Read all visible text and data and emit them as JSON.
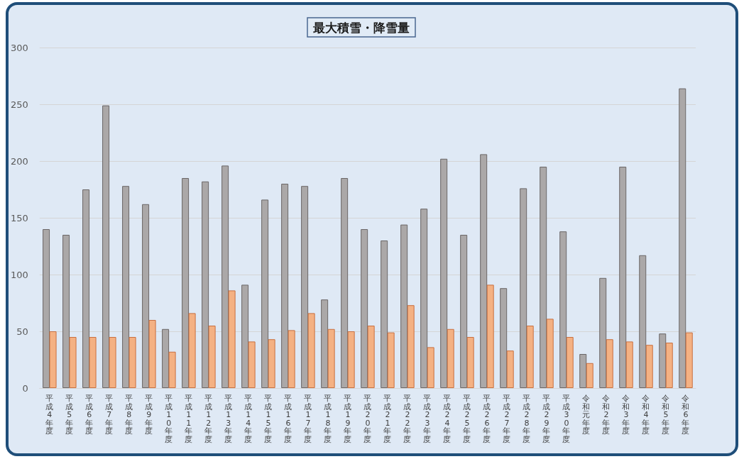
{
  "chart_data": {
    "type": "bar",
    "title": "最大積雪・降雪量",
    "categories": [
      "平成4年度",
      "平成5年度",
      "平成6年度",
      "平成7年度",
      "平成8年度",
      "平成9年度",
      "平成10年度",
      "平成11年度",
      "平成12年度",
      "平成13年度",
      "平成14年度",
      "平成15年度",
      "平成16年度",
      "平成17年度",
      "平成18年度",
      "平成19年度",
      "平成20年度",
      "平成21年度",
      "平成22年度",
      "平成23年度",
      "平成24年度",
      "平成25年度",
      "平成26年度",
      "平成27年度",
      "平成28年度",
      "平成29年度",
      "平成30年度",
      "令和元年度",
      "令和2年度",
      "令和3年度",
      "令和4年度",
      "令和5年度",
      "令和6年度"
    ],
    "series": [
      {
        "color": "#aba8a8",
        "values": [
          140,
          135,
          175,
          249,
          178,
          162,
          52,
          185,
          182,
          196,
          91,
          166,
          180,
          178,
          78,
          185,
          140,
          130,
          144,
          158,
          202,
          135,
          206,
          88,
          176,
          195,
          138,
          30,
          97,
          195,
          117,
          48,
          264
        ]
      },
      {
        "color": "#f4b183",
        "values": [
          50,
          45,
          45,
          45,
          45,
          60,
          32,
          66,
          55,
          86,
          41,
          43,
          51,
          66,
          52,
          50,
          55,
          49,
          73,
          36,
          52,
          45,
          91,
          33,
          55,
          61,
          45,
          22,
          43,
          41,
          38,
          40,
          49
        ]
      }
    ],
    "ylim": [
      0,
      300
    ],
    "yticks": [
      0,
      50,
      100,
      150,
      200,
      250,
      300
    ],
    "grid": "y"
  }
}
